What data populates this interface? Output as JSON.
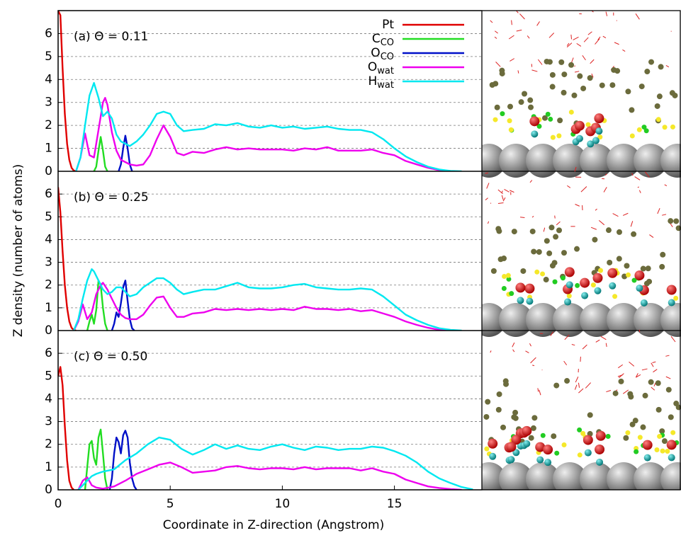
{
  "chart_data": [
    {
      "type": "line",
      "title": "(a)   Θ = 0.11",
      "xlim": [
        0,
        18.9
      ],
      "ylim": [
        0,
        7
      ],
      "yticks": [
        0,
        1,
        2,
        3,
        4,
        5,
        6
      ],
      "grid": true,
      "legend": "top right",
      "series": [
        {
          "name": "Pt",
          "color": "#e00000",
          "x": [
            0,
            0.1,
            0.2,
            0.3,
            0.4,
            0.5,
            0.6,
            0.7,
            0.8
          ],
          "values": [
            7,
            6.8,
            4.5,
            2.5,
            1.2,
            0.5,
            0.15,
            0.03,
            0
          ]
        },
        {
          "name": "C",
          "name_subscript": "CO",
          "color": "#22dd22",
          "x": [
            1.6,
            1.7,
            1.8,
            1.9,
            2.0,
            2.1,
            2.2
          ],
          "values": [
            0,
            0.2,
            0.9,
            1.5,
            0.9,
            0.2,
            0
          ]
        },
        {
          "name": "O",
          "name_subscript": "CO",
          "color": "#0010c8",
          "x": [
            2.7,
            2.8,
            2.9,
            3.0,
            3.1,
            3.2,
            3.3
          ],
          "values": [
            0,
            0.3,
            1,
            1.55,
            1,
            0.3,
            0
          ]
        },
        {
          "name": "O",
          "name_subscript": "wat",
          "color": "#ee00ee",
          "x": [
            0.8,
            1.0,
            1.2,
            1.4,
            1.6,
            1.8,
            2.0,
            2.1,
            2.2,
            2.4,
            2.6,
            2.8,
            3.0,
            3.2,
            3.5,
            3.8,
            4.1,
            4.4,
            4.7,
            5.0,
            5.3,
            5.6,
            6,
            6.5,
            7,
            7.5,
            8,
            8.5,
            9,
            9.5,
            10,
            10.5,
            11,
            11.5,
            12,
            12.5,
            13,
            13.5,
            14,
            14.5,
            15,
            15.5,
            16,
            16.5,
            17,
            17.5
          ],
          "values": [
            0,
            0.6,
            1.65,
            0.7,
            0.6,
            1.8,
            3.0,
            3.2,
            2.9,
            1.7,
            0.9,
            0.5,
            0.4,
            0.3,
            0.25,
            0.3,
            0.7,
            1.4,
            2.0,
            1.5,
            0.8,
            0.7,
            0.85,
            0.8,
            0.95,
            1.05,
            0.95,
            1.0,
            0.95,
            0.95,
            0.95,
            0.9,
            1.0,
            0.95,
            1.05,
            0.9,
            0.9,
            0.9,
            0.95,
            0.8,
            0.7,
            0.45,
            0.3,
            0.15,
            0.05,
            0
          ]
        },
        {
          "name": "H",
          "name_subscript": "wat",
          "color": "#00e8f0",
          "x": [
            0.8,
            1.0,
            1.2,
            1.4,
            1.6,
            1.8,
            2.0,
            2.2,
            2.4,
            2.6,
            2.8,
            3.0,
            3.2,
            3.5,
            3.8,
            4.1,
            4.4,
            4.7,
            5.0,
            5.3,
            5.6,
            6,
            6.5,
            7,
            7.5,
            8,
            8.5,
            9,
            9.5,
            10,
            10.5,
            11,
            11.5,
            12,
            12.5,
            13,
            13.5,
            14,
            14.5,
            15,
            15.5,
            16,
            16.5,
            17,
            17.5,
            18
          ],
          "values": [
            0,
            0.6,
            2.0,
            3.3,
            3.85,
            3.2,
            2.4,
            2.6,
            2.3,
            1.6,
            1.3,
            1.2,
            1.1,
            1.3,
            1.6,
            2.0,
            2.5,
            2.6,
            2.5,
            2.0,
            1.75,
            1.8,
            1.85,
            2.05,
            2.0,
            2.1,
            1.95,
            1.9,
            2.0,
            1.9,
            1.95,
            1.85,
            1.9,
            1.95,
            1.85,
            1.8,
            1.8,
            1.7,
            1.4,
            1.0,
            0.65,
            0.4,
            0.2,
            0.08,
            0.02,
            0
          ]
        }
      ]
    },
    {
      "type": "line",
      "title": "(b)   Θ = 0.25",
      "ylabel": "Z density (number of atoms)",
      "xlim": [
        0,
        18.9
      ],
      "ylim": [
        0,
        7
      ],
      "yticks": [
        0,
        1,
        2,
        3,
        4,
        5,
        6
      ],
      "grid": true,
      "series": [
        {
          "color": "#e00000",
          "x": [
            0,
            0.1,
            0.2,
            0.3,
            0.4,
            0.5,
            0.6,
            0.7,
            0.8
          ],
          "values": [
            6.3,
            5.2,
            3.5,
            2.0,
            1.0,
            0.4,
            0.12,
            0.03,
            0
          ]
        },
        {
          "color": "#22dd22",
          "x": [
            1.3,
            1.4,
            1.5,
            1.6,
            1.7,
            1.8,
            1.9,
            2.0,
            2.1,
            2.2
          ],
          "values": [
            0,
            0.4,
            0.7,
            0.3,
            0.9,
            2.2,
            2.0,
            1.0,
            0.3,
            0
          ]
        },
        {
          "color": "#0010c8",
          "x": [
            2.4,
            2.5,
            2.6,
            2.7,
            2.8,
            2.9,
            3.0,
            3.1,
            3.2,
            3.3,
            3.4
          ],
          "values": [
            0,
            0.3,
            0.8,
            0.6,
            1.2,
            1.9,
            2.2,
            1.3,
            0.5,
            0.1,
            0
          ]
        },
        {
          "color": "#ee00ee",
          "x": [
            0.7,
            0.9,
            1.1,
            1.3,
            1.5,
            1.7,
            1.9,
            2.0,
            2.2,
            2.4,
            2.6,
            2.8,
            3.0,
            3.2,
            3.5,
            3.8,
            4.1,
            4.4,
            4.7,
            5.0,
            5.3,
            5.6,
            6,
            6.5,
            7,
            7.5,
            8,
            8.5,
            9,
            9.5,
            10,
            10.5,
            11,
            11.5,
            12,
            12.5,
            13,
            13.5,
            14,
            14.5,
            15,
            15.5,
            16,
            16.5,
            17,
            17.5
          ],
          "values": [
            0,
            0.4,
            1.15,
            0.5,
            0.8,
            1.6,
            2.0,
            2.1,
            1.8,
            1.4,
            1.0,
            0.7,
            0.55,
            0.5,
            0.5,
            0.7,
            1.1,
            1.45,
            1.5,
            1.0,
            0.6,
            0.6,
            0.75,
            0.8,
            0.95,
            0.9,
            0.95,
            0.9,
            0.95,
            0.9,
            0.95,
            0.9,
            1.05,
            0.95,
            0.95,
            0.9,
            0.95,
            0.85,
            0.9,
            0.75,
            0.6,
            0.4,
            0.25,
            0.12,
            0.03,
            0
          ]
        },
        {
          "color": "#00e8f0",
          "x": [
            0.7,
            0.9,
            1.1,
            1.3,
            1.5,
            1.6,
            1.8,
            2.0,
            2.2,
            2.4,
            2.6,
            2.8,
            3.0,
            3.2,
            3.5,
            3.8,
            4.1,
            4.4,
            4.7,
            5.0,
            5.3,
            5.6,
            6,
            6.5,
            7,
            7.5,
            8,
            8.5,
            9,
            9.5,
            10,
            10.5,
            11,
            11.5,
            12,
            12.5,
            13,
            13.5,
            14,
            14.5,
            15,
            15.5,
            16,
            16.5,
            17,
            17.5,
            18
          ],
          "values": [
            0,
            0.5,
            1.4,
            2.2,
            2.7,
            2.6,
            2.2,
            1.8,
            1.6,
            1.7,
            1.9,
            1.9,
            1.7,
            1.5,
            1.6,
            1.9,
            2.1,
            2.3,
            2.3,
            2.1,
            1.8,
            1.6,
            1.7,
            1.8,
            1.8,
            1.95,
            2.1,
            1.9,
            1.85,
            1.85,
            1.9,
            2.0,
            2.05,
            1.9,
            1.85,
            1.8,
            1.8,
            1.85,
            1.8,
            1.5,
            1.1,
            0.7,
            0.45,
            0.25,
            0.1,
            0.03,
            0
          ]
        }
      ]
    },
    {
      "type": "line",
      "title": "(c)   Θ = 0.50",
      "xlabel": "Coordinate in Z-direction (Angstrom)",
      "xlim": [
        0,
        18.9
      ],
      "xticks": [
        0,
        5,
        10,
        15
      ],
      "ylim": [
        0,
        7
      ],
      "yticks": [
        0,
        1,
        2,
        3,
        4,
        5,
        6
      ],
      "grid": true,
      "series": [
        {
          "color": "#e00000",
          "x": [
            0,
            0.1,
            0.2,
            0.3,
            0.4,
            0.5,
            0.6,
            0.7
          ],
          "values": [
            5.0,
            5.4,
            4.6,
            2.8,
            1.3,
            0.4,
            0.1,
            0
          ]
        },
        {
          "color": "#22dd22",
          "x": [
            1.2,
            1.3,
            1.4,
            1.5,
            1.6,
            1.7,
            1.8,
            1.9,
            2.0,
            2.1,
            2.2
          ],
          "values": [
            0,
            1.0,
            2.0,
            2.15,
            1.4,
            1.1,
            2.3,
            2.65,
            1.6,
            0.5,
            0
          ]
        },
        {
          "color": "#0010c8",
          "x": [
            2.3,
            2.4,
            2.5,
            2.6,
            2.7,
            2.8,
            2.9,
            3.0,
            3.1,
            3.2,
            3.3,
            3.4,
            3.5
          ],
          "values": [
            0,
            0.5,
            1.6,
            2.3,
            2.1,
            1.6,
            2.4,
            2.6,
            2.3,
            1.2,
            0.5,
            0.15,
            0
          ]
        },
        {
          "color": "#ee00ee",
          "x": [
            0.9,
            1.1,
            1.3,
            1.5,
            1.7,
            2.0,
            2.5,
            3.0,
            3.5,
            4.0,
            4.5,
            5.0,
            5.5,
            6,
            6.5,
            7,
            7.5,
            8,
            8.5,
            9,
            9.5,
            10,
            10.5,
            11,
            11.5,
            12,
            12.5,
            13,
            13.5,
            14,
            14.5,
            15,
            15.5,
            16,
            16.5,
            17,
            17.5,
            18
          ],
          "values": [
            0,
            0.4,
            0.55,
            0.2,
            0.1,
            0.05,
            0.15,
            0.4,
            0.7,
            0.9,
            1.1,
            1.2,
            1.0,
            0.75,
            0.8,
            0.85,
            1.0,
            1.05,
            0.95,
            0.9,
            0.95,
            0.95,
            0.9,
            1.0,
            0.9,
            0.95,
            0.95,
            0.95,
            0.85,
            0.95,
            0.8,
            0.7,
            0.45,
            0.3,
            0.15,
            0.08,
            0.03,
            0
          ]
        },
        {
          "color": "#00e8f0",
          "x": [
            0.9,
            1.1,
            1.3,
            1.5,
            1.7,
            2.0,
            2.5,
            3.0,
            3.5,
            4.0,
            4.5,
            5.0,
            5.5,
            6,
            6.5,
            7,
            7.5,
            8,
            8.5,
            9,
            9.5,
            10,
            10.5,
            11,
            11.5,
            12,
            12.5,
            13,
            13.5,
            14,
            14.5,
            15,
            15.5,
            16,
            16.5,
            17,
            17.5,
            18,
            18.5
          ],
          "values": [
            0,
            0.2,
            0.4,
            0.6,
            0.7,
            0.8,
            0.9,
            1.3,
            1.6,
            2.0,
            2.3,
            2.2,
            1.8,
            1.55,
            1.75,
            2.0,
            1.8,
            1.95,
            1.8,
            1.75,
            1.9,
            2.0,
            1.85,
            1.75,
            1.9,
            1.85,
            1.75,
            1.8,
            1.8,
            1.9,
            1.85,
            1.7,
            1.5,
            1.2,
            0.8,
            0.5,
            0.3,
            0.12,
            0.02
          ]
        }
      ]
    }
  ]
}
